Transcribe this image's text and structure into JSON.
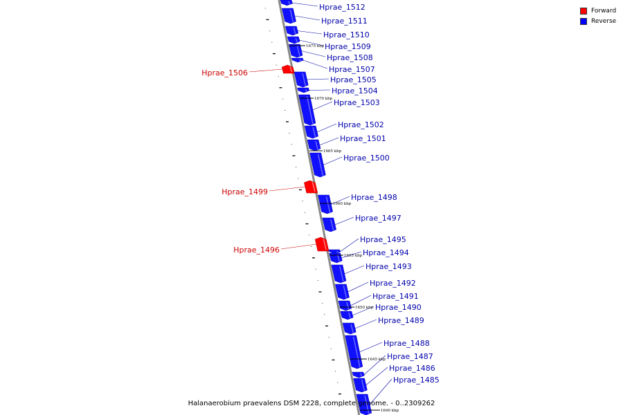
{
  "caption": "Halanaerobium praevalens DSM 2228, complete genome. - 0..2309262",
  "legend": [
    {
      "label": "Forward",
      "color": "#ff0000"
    },
    {
      "label": "Reverse",
      "color": "#0000ff"
    }
  ],
  "colors": {
    "forward": "#ff0000",
    "reverse": "#1010ff",
    "forward_label": "#cc0000",
    "reverse_label": "#0000aa",
    "backbone": "#888888"
  },
  "kbp_marks": [
    "1675 kbp",
    "1670 kbp",
    "1665 kbp",
    "1660 kbp",
    "1655 kbp",
    "1650 kbp",
    "1645 kbp",
    "1640 kbp"
  ],
  "genes": [
    {
      "name": "Hprae_1512",
      "strand": "reverse"
    },
    {
      "name": "Hprae_1511",
      "strand": "reverse"
    },
    {
      "name": "Hprae_1510",
      "strand": "reverse"
    },
    {
      "name": "Hprae_1509",
      "strand": "reverse"
    },
    {
      "name": "Hprae_1508",
      "strand": "reverse"
    },
    {
      "name": "Hprae_1507",
      "strand": "reverse"
    },
    {
      "name": "Hprae_1506",
      "strand": "forward"
    },
    {
      "name": "Hprae_1505",
      "strand": "reverse"
    },
    {
      "name": "Hprae_1504",
      "strand": "reverse"
    },
    {
      "name": "Hprae_1503",
      "strand": "reverse"
    },
    {
      "name": "Hprae_1502",
      "strand": "reverse"
    },
    {
      "name": "Hprae_1501",
      "strand": "reverse"
    },
    {
      "name": "Hprae_1500",
      "strand": "reverse"
    },
    {
      "name": "Hprae_1499",
      "strand": "forward"
    },
    {
      "name": "Hprae_1498",
      "strand": "reverse"
    },
    {
      "name": "Hprae_1497",
      "strand": "reverse"
    },
    {
      "name": "Hprae_1496",
      "strand": "forward"
    },
    {
      "name": "Hprae_1495",
      "strand": "reverse"
    },
    {
      "name": "Hprae_1494",
      "strand": "reverse"
    },
    {
      "name": "Hprae_1493",
      "strand": "reverse"
    },
    {
      "name": "Hprae_1492",
      "strand": "reverse"
    },
    {
      "name": "Hprae_1491",
      "strand": "reverse"
    },
    {
      "name": "Hprae_1490",
      "strand": "reverse"
    },
    {
      "name": "Hprae_1489",
      "strand": "reverse"
    },
    {
      "name": "Hprae_1488",
      "strand": "reverse"
    },
    {
      "name": "Hprae_1487",
      "strand": "reverse"
    },
    {
      "name": "Hprae_1486",
      "strand": "reverse"
    },
    {
      "name": "Hprae_1485",
      "strand": "reverse"
    }
  ]
}
